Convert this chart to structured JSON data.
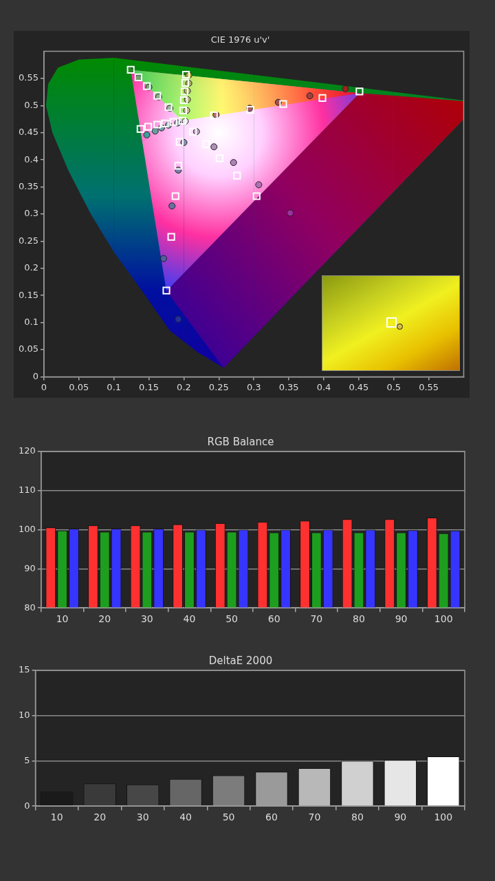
{
  "chart_data": [
    {
      "type": "scatter",
      "title": "CIE 1976 u'v'",
      "xlim": [
        0,
        0.6
      ],
      "ylim": [
        0,
        0.6
      ],
      "xticks": [
        0,
        0.05,
        0.1,
        0.15,
        0.2,
        0.25,
        0.3,
        0.35,
        0.4,
        0.45,
        0.5,
        0.55
      ],
      "yticks": [
        0,
        0.05,
        0.1,
        0.15,
        0.2,
        0.25,
        0.3,
        0.35,
        0.4,
        0.45,
        0.5,
        0.55
      ],
      "grid": false,
      "legend": false,
      "series": [
        {
          "marker": "square",
          "color": "#ffffff",
          "x": [
            0.198,
            0.243,
            0.295,
            0.342,
            0.398,
            0.451,
            0.178,
            0.162,
            0.147,
            0.135,
            0.124,
            0.194,
            0.192,
            0.188,
            0.182,
            0.175,
            0.199,
            0.2,
            0.201,
            0.202,
            0.203,
            0.185,
            0.173,
            0.162,
            0.149,
            0.138,
            0.213,
            0.232,
            0.251,
            0.276,
            0.304
          ],
          "values": [
            0.472,
            0.482,
            0.492,
            0.503,
            0.514,
            0.526,
            0.497,
            0.518,
            0.536,
            0.552,
            0.566,
            0.433,
            0.389,
            0.333,
            0.258,
            0.159,
            0.491,
            0.51,
            0.526,
            0.542,
            0.557,
            0.47,
            0.467,
            0.465,
            0.461,
            0.457,
            0.452,
            0.429,
            0.403,
            0.371,
            0.333
          ]
        },
        {
          "marker": "circle",
          "colors": [
            "#e8e8e8",
            "#b87070",
            "#a86060",
            "#a05050",
            "#a04040",
            "#a02020",
            "#a0b8a0",
            "#90b090",
            "#80a880",
            "#70a070",
            "#209020",
            "#8890b0",
            "#7880a8",
            "#6870a8",
            "#5060a0",
            "#2030a0",
            "#c0c090",
            "#b8b880",
            "#b8b870",
            "#b0b060",
            "#b0b040",
            "#90b0b0",
            "#80a8a8",
            "#70a0a8",
            "#60a0a0",
            "#40a0a0",
            "#c0a0c0",
            "#b090b8",
            "#b080b8",
            "#b070b8",
            "#a030a0"
          ],
          "x": [
            0.202,
            0.246,
            0.294,
            0.335,
            0.38,
            0.431,
            0.18,
            0.164,
            0.15,
            0.135,
            0.123,
            0.2,
            0.192,
            0.183,
            0.171,
            0.192,
            0.204,
            0.205,
            0.205,
            0.207,
            0.207,
            0.191,
            0.178,
            0.168,
            0.159,
            0.147,
            0.218,
            0.243,
            0.271,
            0.307,
            0.352
          ],
          "values": [
            0.471,
            0.483,
            0.495,
            0.506,
            0.518,
            0.531,
            0.495,
            0.516,
            0.534,
            0.551,
            0.565,
            0.432,
            0.381,
            0.315,
            0.218,
            0.106,
            0.491,
            0.511,
            0.527,
            0.541,
            0.556,
            0.468,
            0.464,
            0.459,
            0.453,
            0.446,
            0.452,
            0.424,
            0.395,
            0.354,
            0.302
          ]
        }
      ]
    },
    {
      "type": "bar",
      "title": "RGB Balance",
      "categories": [
        "10",
        "20",
        "30",
        "40",
        "50",
        "60",
        "70",
        "80",
        "90",
        "100"
      ],
      "ylim": [
        80,
        120
      ],
      "yticks": [
        80,
        90,
        100,
        110,
        120
      ],
      "grid": "y",
      "legend": false,
      "series": [
        {
          "color": "#ff3030",
          "values": [
            100.6,
            101.1,
            101.1,
            101.4,
            101.7,
            102.0,
            102.3,
            102.7,
            102.7,
            103.1
          ]
        },
        {
          "color": "#1e9e1e",
          "values": [
            99.8,
            99.5,
            99.5,
            99.5,
            99.5,
            99.3,
            99.3,
            99.3,
            99.3,
            99.1
          ]
        },
        {
          "color": "#3535ff",
          "values": [
            100.3,
            100.3,
            100.3,
            100.0,
            100.0,
            100.0,
            100.0,
            100.0,
            99.9,
            99.8
          ]
        }
      ]
    },
    {
      "type": "bar",
      "title": "DeltaE 2000",
      "categories": [
        "10",
        "20",
        "30",
        "40",
        "50",
        "60",
        "70",
        "80",
        "90",
        "100"
      ],
      "ylim": [
        0,
        15
      ],
      "yticks": [
        0,
        5,
        10,
        15
      ],
      "grid": "y",
      "legend": false,
      "values": [
        1.6,
        2.5,
        2.4,
        3.0,
        3.4,
        3.8,
        4.2,
        5.0,
        5.1,
        5.5
      ],
      "colors": [
        "#1a1a1a",
        "#3a3a3a",
        "#474747",
        "#666666",
        "#7c7c7c",
        "#9a9a9a",
        "#b8b8b8",
        "#d0d0d0",
        "#e6e6e6",
        "#ffffff"
      ]
    }
  ]
}
